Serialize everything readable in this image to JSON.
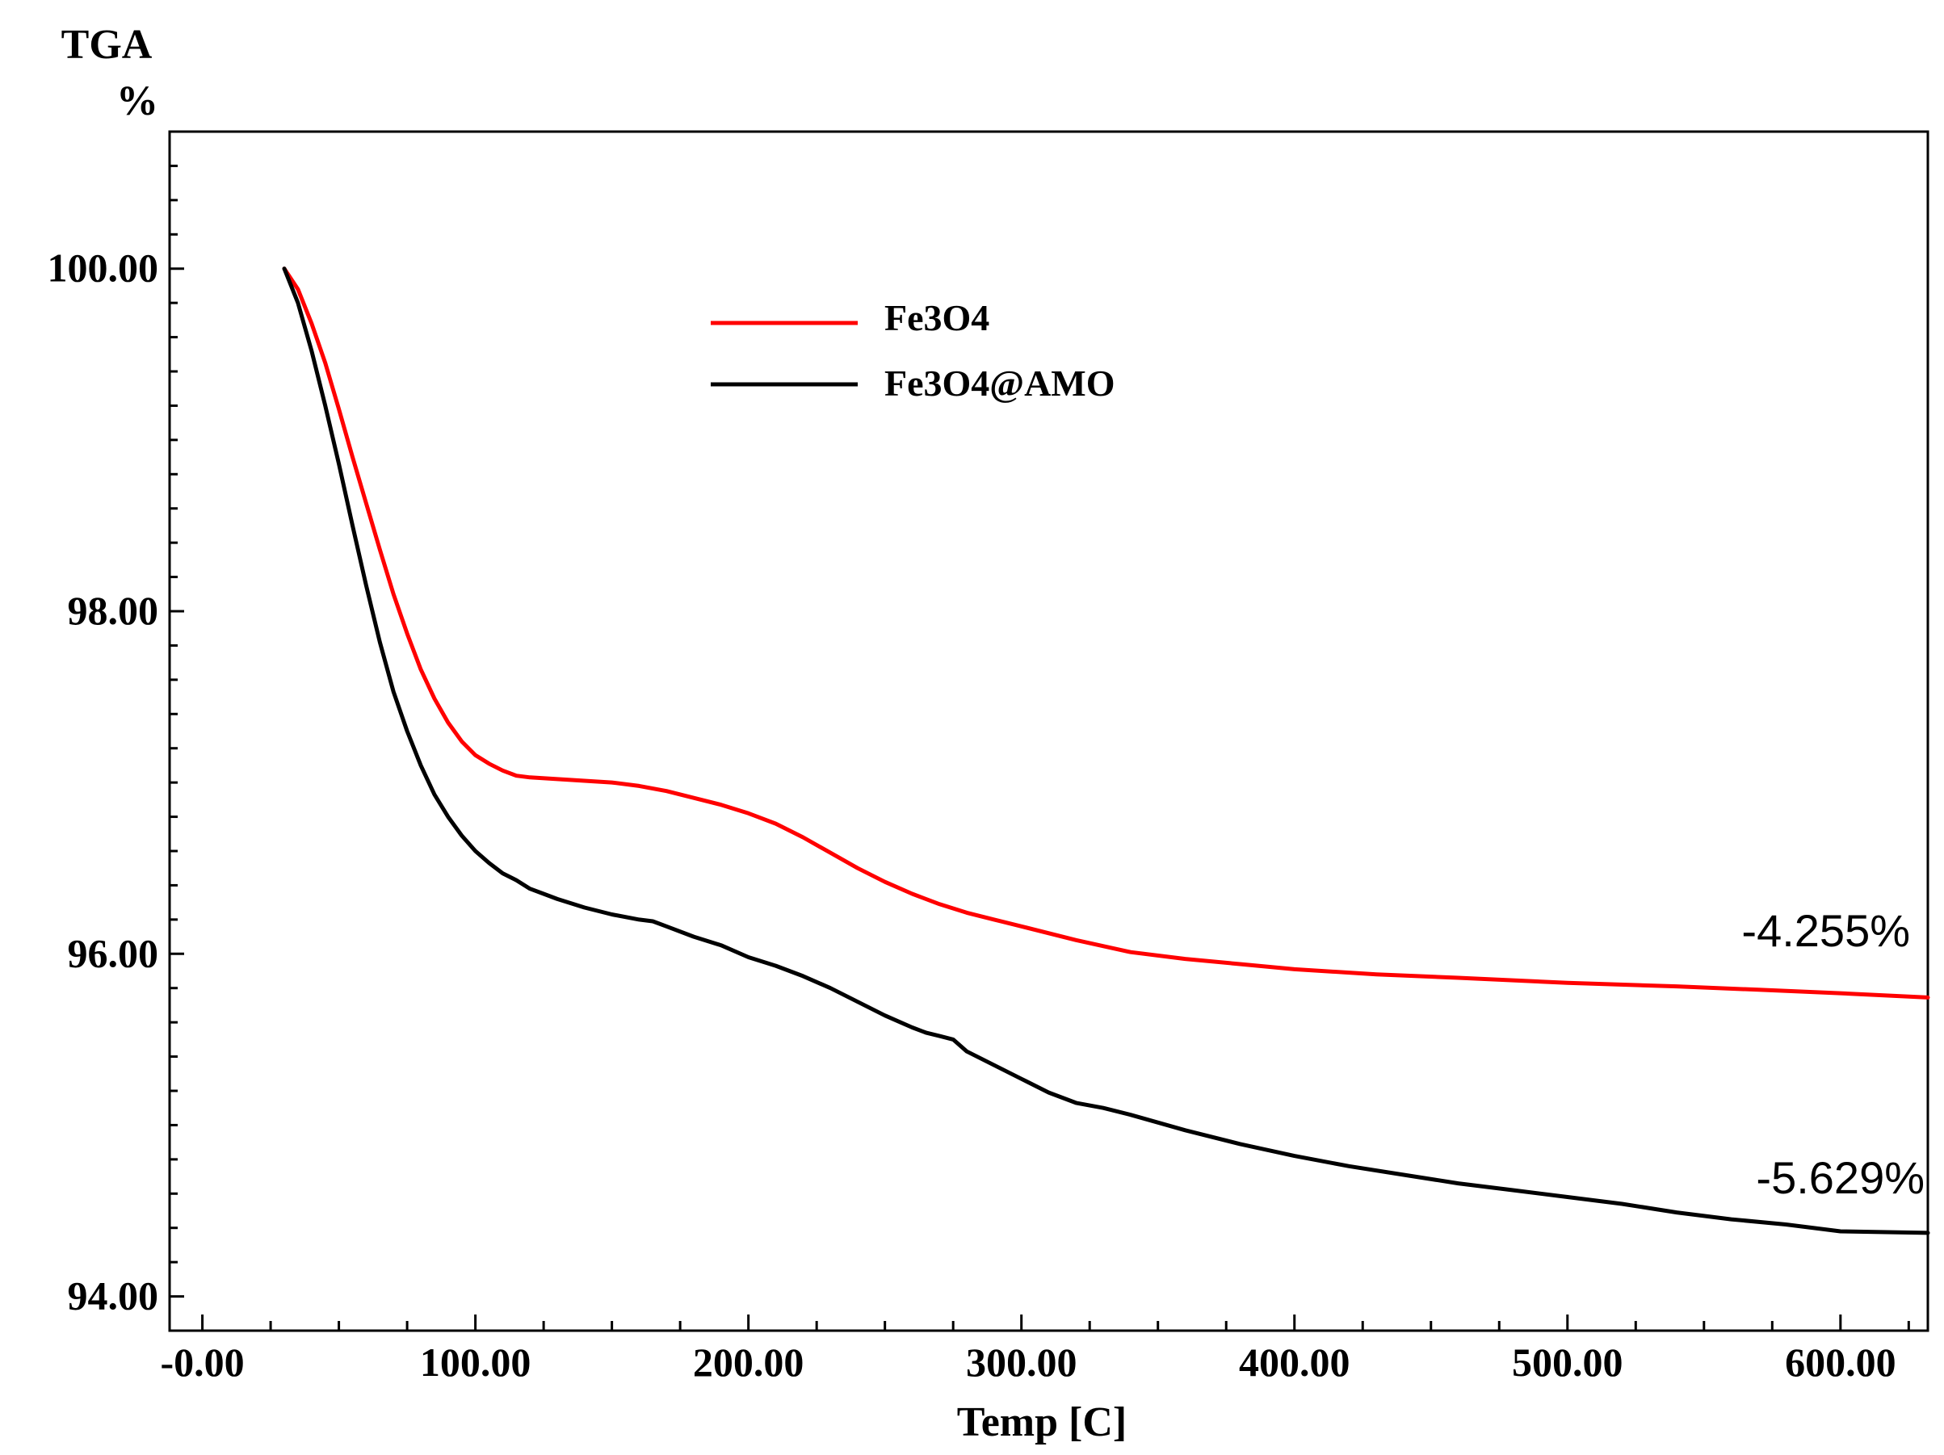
{
  "chart_data": {
    "type": "line",
    "y_title_line1": "TGA",
    "y_title_line2": "%",
    "xlabel": "Temp  [C]",
    "xlim": [
      -12,
      632
    ],
    "ylim": [
      93.8,
      100.8
    ],
    "x_ticks": [
      {
        "value": 0,
        "label": "-0.00"
      },
      {
        "value": 100,
        "label": "100.00"
      },
      {
        "value": 200,
        "label": "200.00"
      },
      {
        "value": 300,
        "label": "300.00"
      },
      {
        "value": 400,
        "label": "400.00"
      },
      {
        "value": 500,
        "label": "500.00"
      },
      {
        "value": 600,
        "label": "600.00"
      }
    ],
    "y_ticks": [
      {
        "value": 94,
        "label": "94.00"
      },
      {
        "value": 96,
        "label": "96.00"
      },
      {
        "value": 98,
        "label": "98.00"
      },
      {
        "value": 100,
        "label": "100.00"
      }
    ],
    "grid": false,
    "legend_position": "top-center",
    "series": [
      {
        "name": "Fe3O4",
        "color": "#ff0000",
        "x": [
          30,
          35,
          40,
          45,
          50,
          55,
          60,
          65,
          70,
          75,
          80,
          85,
          90,
          95,
          100,
          105,
          110,
          115,
          120,
          130,
          140,
          150,
          160,
          170,
          180,
          190,
          200,
          210,
          220,
          230,
          240,
          250,
          260,
          270,
          280,
          290,
          300,
          320,
          340,
          360,
          380,
          400,
          430,
          460,
          500,
          540,
          570,
          600,
          632
        ],
        "y": [
          100.0,
          99.88,
          99.68,
          99.45,
          99.18,
          98.9,
          98.63,
          98.36,
          98.1,
          97.87,
          97.66,
          97.49,
          97.35,
          97.24,
          97.16,
          97.11,
          97.07,
          97.04,
          97.03,
          97.02,
          97.01,
          97.0,
          96.98,
          96.95,
          96.91,
          96.87,
          96.82,
          96.76,
          96.68,
          96.59,
          96.5,
          96.42,
          96.35,
          96.29,
          96.24,
          96.2,
          96.16,
          96.08,
          96.01,
          95.97,
          95.94,
          95.91,
          95.88,
          95.86,
          95.83,
          95.81,
          95.79,
          95.77,
          95.745
        ]
      },
      {
        "name": "Fe3O4@AMO",
        "color": "#000000",
        "x": [
          30,
          35,
          40,
          45,
          50,
          55,
          60,
          65,
          70,
          75,
          80,
          85,
          90,
          95,
          100,
          105,
          110,
          115,
          120,
          125,
          130,
          140,
          150,
          160,
          165,
          170,
          180,
          190,
          200,
          210,
          220,
          230,
          240,
          250,
          260,
          265,
          270,
          275,
          280,
          290,
          300,
          310,
          320,
          330,
          340,
          360,
          380,
          400,
          420,
          440,
          460,
          480,
          500,
          520,
          540,
          560,
          580,
          600,
          632
        ],
        "y": [
          100.0,
          99.8,
          99.52,
          99.2,
          98.86,
          98.5,
          98.15,
          97.82,
          97.53,
          97.3,
          97.1,
          96.93,
          96.8,
          96.69,
          96.6,
          96.53,
          96.47,
          96.43,
          96.38,
          96.35,
          96.32,
          96.27,
          96.23,
          96.2,
          96.19,
          96.16,
          96.1,
          96.05,
          95.98,
          95.93,
          95.87,
          95.8,
          95.72,
          95.64,
          95.57,
          95.54,
          95.52,
          95.5,
          95.43,
          95.35,
          95.27,
          95.19,
          95.13,
          95.1,
          95.06,
          94.97,
          94.89,
          94.82,
          94.76,
          94.71,
          94.66,
          94.62,
          94.58,
          94.54,
          94.49,
          94.45,
          94.42,
          94.38,
          94.371
        ]
      }
    ],
    "annotations": [
      {
        "text": "-4.255%",
        "series": "Fe3O4"
      },
      {
        "text": "-5.629%",
        "series": "Fe3O4@AMO"
      }
    ]
  }
}
